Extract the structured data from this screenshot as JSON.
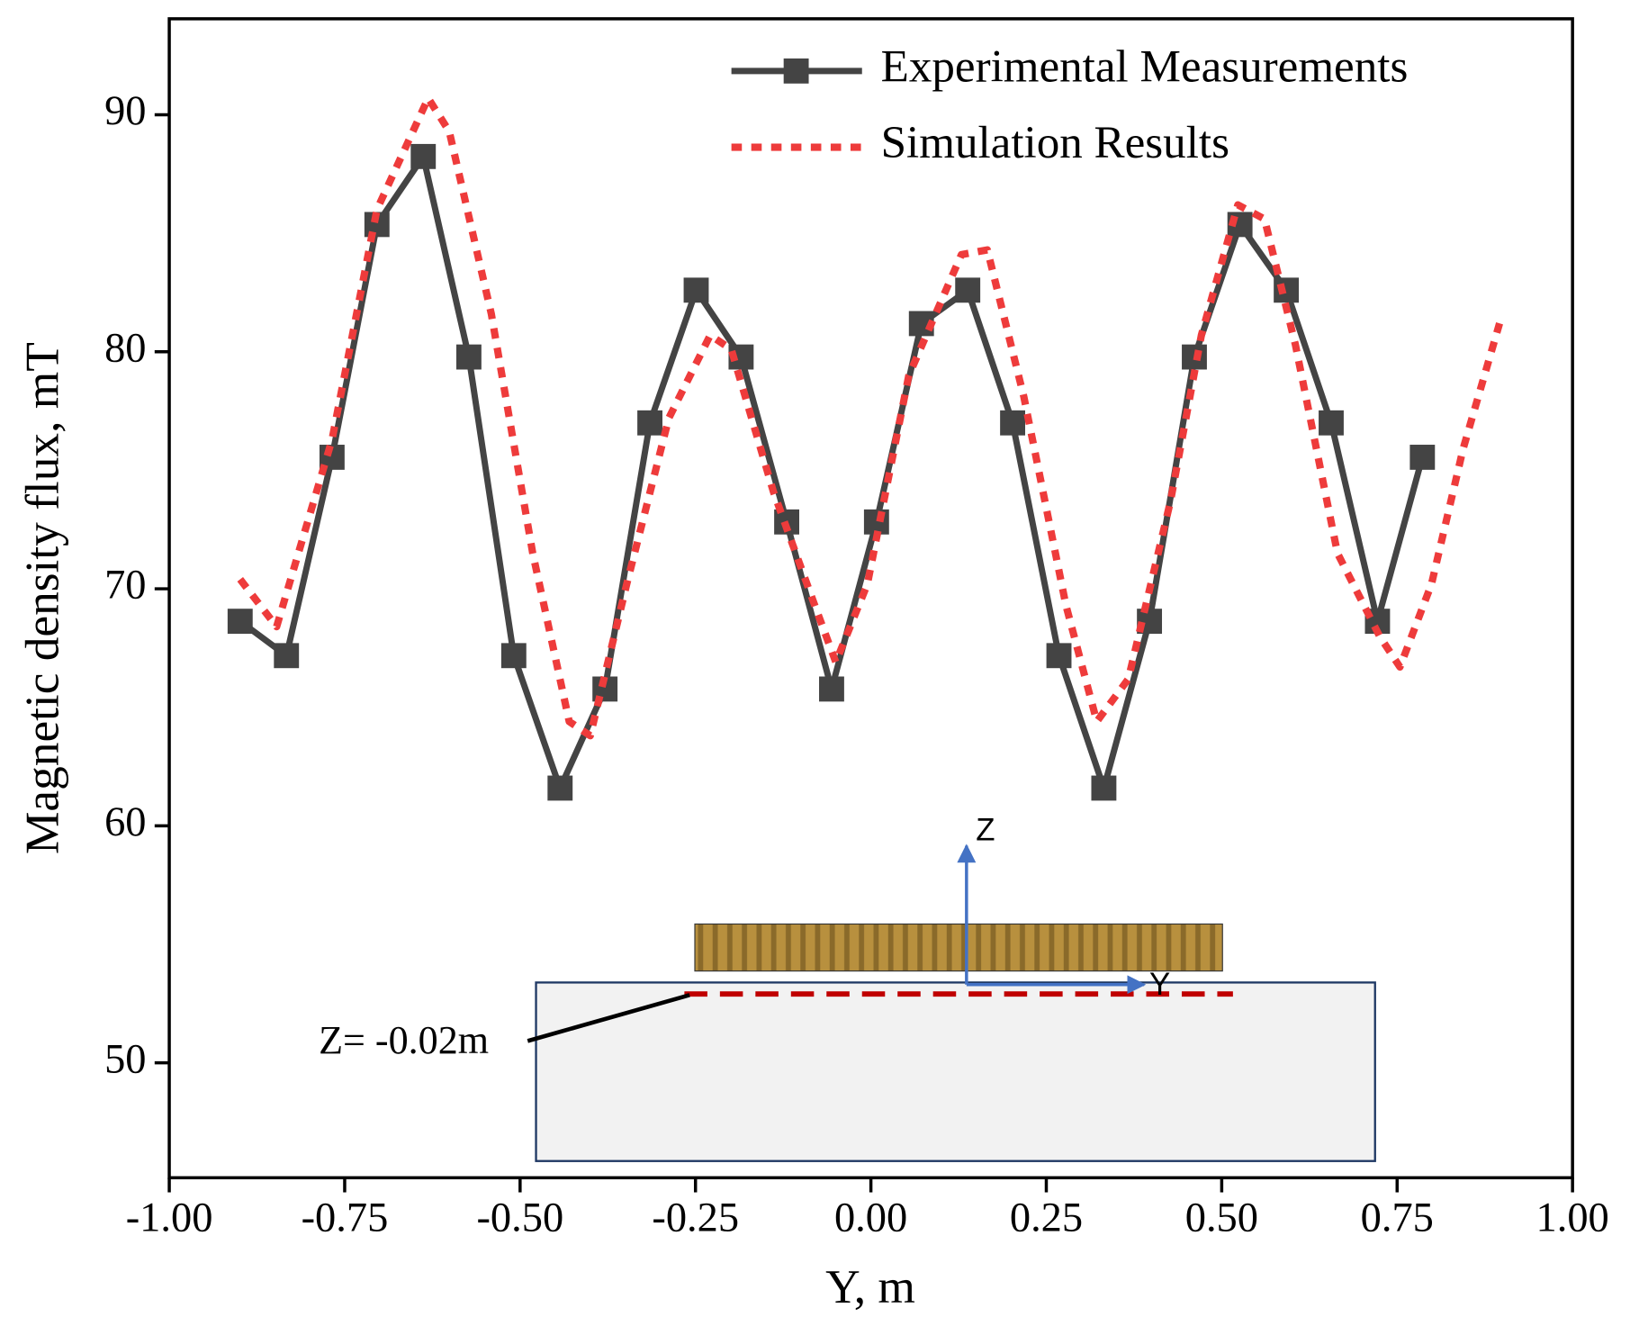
{
  "chart_data": {
    "type": "line",
    "x_label": "Y, m",
    "y_label": "Magnetic density flux, mT",
    "xlim": [
      -1.0,
      1.0
    ],
    "ylim": [
      45.15,
      94.05
    ],
    "xticks": [
      {
        "value": -1.0,
        "label": "-1.00"
      },
      {
        "value": -0.75,
        "label": "-0.75"
      },
      {
        "value": -0.5,
        "label": "-0.50"
      },
      {
        "value": -0.25,
        "label": "-0.25"
      },
      {
        "value": 0,
        "label": "0.00"
      },
      {
        "value": 0.25,
        "label": "0.25"
      },
      {
        "value": 0.5,
        "label": "0.50"
      },
      {
        "value": 0.75,
        "label": "0.75"
      },
      {
        "value": 1.0,
        "label": "1.00"
      }
    ],
    "yticks": [
      50,
      60,
      70,
      80,
      90
    ],
    "legend": "upper right",
    "series": [
      {
        "name": "Experimental Measurements",
        "color": "#444444",
        "style": "solid",
        "marker": "square",
        "x": [
          -0.899,
          -0.833,
          -0.768,
          -0.704,
          -0.638,
          -0.573,
          -0.509,
          -0.443,
          -0.379,
          -0.315,
          -0.249,
          -0.185,
          -0.12,
          -0.056,
          0.008,
          0.072,
          0.138,
          0.202,
          0.268,
          0.332,
          0.397,
          0.461,
          0.526,
          0.592,
          0.656,
          0.722,
          0.786
        ],
        "values": [
          68.63,
          67.18,
          75.55,
          85.37,
          88.24,
          79.78,
          67.18,
          61.59,
          65.77,
          77.0,
          82.6,
          79.78,
          72.82,
          65.77,
          72.82,
          81.19,
          82.6,
          77.0,
          67.18,
          61.59,
          68.63,
          79.78,
          85.37,
          82.6,
          77.0,
          68.63,
          75.55
        ]
      },
      {
        "name": "Simulation Results",
        "color": "#ee3b3b",
        "style": "dotted",
        "x": [
          -0.899,
          -0.847,
          -0.768,
          -0.704,
          -0.631,
          -0.601,
          -0.541,
          -0.482,
          -0.43,
          -0.4,
          -0.348,
          -0.288,
          -0.229,
          -0.199,
          -0.139,
          -0.08,
          -0.05,
          -0.005,
          0.054,
          0.129,
          0.166,
          0.218,
          0.278,
          0.322,
          0.367,
          0.427,
          0.471,
          0.523,
          0.561,
          0.605,
          0.665,
          0.725,
          0.754,
          0.799,
          0.844,
          0.896
        ],
        "values": [
          70.4,
          68.4,
          76.3,
          86.0,
          90.7,
          89.3,
          81.6,
          71.5,
          64.4,
          63.8,
          70.2,
          77.2,
          80.7,
          80.1,
          74.1,
          69.3,
          66.9,
          70.2,
          79.0,
          84.1,
          84.3,
          78.1,
          69.3,
          64.4,
          66.2,
          73.7,
          80.7,
          86.2,
          85.6,
          80.3,
          71.5,
          68.0,
          66.7,
          70.2,
          75.9,
          81.2
        ]
      }
    ],
    "inset": {
      "z_axis": "Z",
      "y_axis": "Y",
      "annotation": "Z= -0.02m"
    }
  }
}
